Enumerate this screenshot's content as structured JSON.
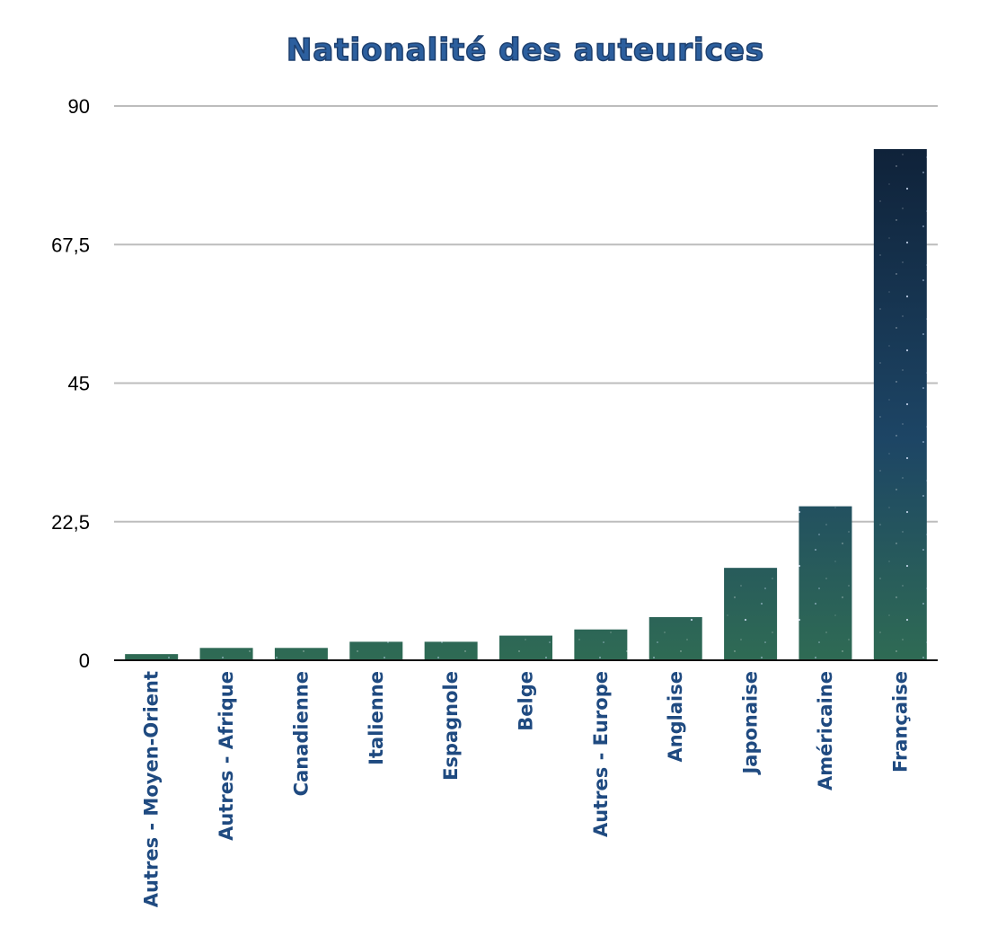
{
  "chart_data": {
    "type": "bar",
    "title": "Nationalité des auteurices",
    "categories": [
      "Autres - Moyen-Orient",
      "Autres - Afrique",
      "Canadienne",
      "Italienne",
      "Espagnole",
      "Belge",
      "Autres - Europe",
      "Anglaise",
      "Japonaise",
      "Américaine",
      "Française"
    ],
    "values": [
      1,
      2,
      2,
      3,
      3,
      4,
      5,
      7,
      15,
      25,
      83
    ],
    "ylim": [
      0,
      90
    ],
    "yticks": [
      "0",
      "22,5",
      "45",
      "67,5",
      "90"
    ],
    "ytick_values": [
      0,
      22.5,
      45,
      67.5,
      90
    ],
    "xlabel": "",
    "ylabel": "",
    "grid": true,
    "colors": {
      "bar_top": "#0d1d33",
      "bar_mid": "#1d4565",
      "bar_bottom": "#2f6b54",
      "label": "#1f4a80",
      "title": "#2c5f9e"
    }
  }
}
